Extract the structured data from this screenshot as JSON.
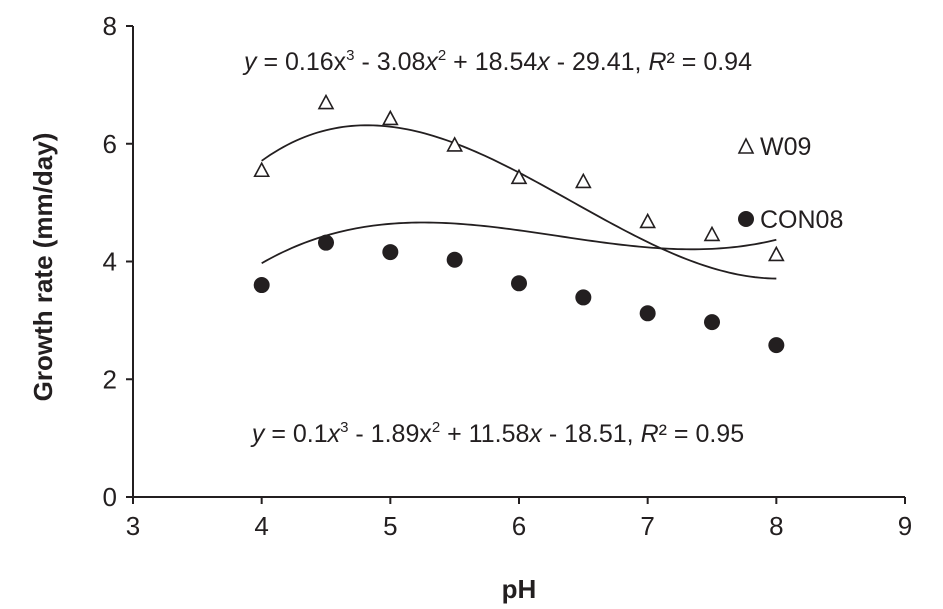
{
  "chart_data": {
    "type": "scatter",
    "xlabel": "pH",
    "ylabel": "Growth rate (mm/day)",
    "xlim": [
      3,
      9
    ],
    "ylim": [
      0,
      8
    ],
    "xticks": [
      "3",
      "4",
      "5",
      "6",
      "7",
      "8",
      "9"
    ],
    "yticks": [
      "0",
      "2",
      "4",
      "6",
      "8"
    ],
    "grid": false,
    "legend_position": "right",
    "series": [
      {
        "name": "W09",
        "marker": "open-triangle",
        "color": "#231f20",
        "x": [
          4,
          4.5,
          5,
          5.5,
          6,
          6.5,
          7,
          7.5,
          8
        ],
        "y": [
          5.55,
          6.7,
          6.43,
          5.98,
          5.43,
          5.36,
          4.68,
          4.46,
          4.12
        ],
        "fit": {
          "type": "poly3",
          "coefficients": [
            0.16,
            -3.08,
            18.54,
            -29.41
          ],
          "r2": 0.94,
          "equation": {
            "y": "y",
            "eq_open": " = 0.16x",
            "exp3": "3",
            "t1": " - 3.08",
            "x2": "x",
            "exp2": "2",
            "t2": " + 18.54",
            "x1": "x",
            "t3": " - 29.41, ",
            "r": "R",
            "r2_text": "² = 0.94"
          }
        }
      },
      {
        "name": "CON08",
        "marker": "filled-circle",
        "color": "#231f20",
        "x": [
          4,
          4.5,
          5,
          5.5,
          6,
          6.5,
          7,
          7.5,
          8
        ],
        "y": [
          3.6,
          4.32,
          4.16,
          4.03,
          3.63,
          3.39,
          3.12,
          2.97,
          2.58
        ],
        "fit": {
          "type": "poly3",
          "coefficients": [
            0.1,
            -1.89,
            11.58,
            -18.51
          ],
          "r2": 0.95,
          "equation": {
            "y": "y",
            "eq_open": " = 0.1",
            "x3": "x",
            "exp3": "3",
            "t1": " - 1.89x",
            "exp2": "2",
            "t2": " + 11.58",
            "x1": "x",
            "t3": " - 18.51, ",
            "r": "R",
            "r2_text": "² = 0.95"
          }
        }
      }
    ]
  }
}
